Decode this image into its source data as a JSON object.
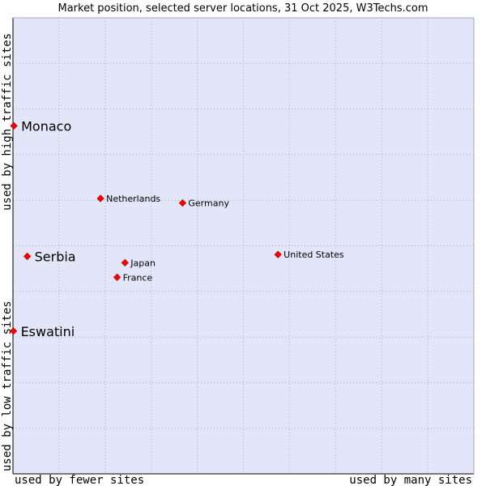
{
  "chart_data": {
    "type": "scatter",
    "title": "Market position, selected server locations, 31 Oct 2025, W3Techs.com",
    "xlabel_left": "used by fewer sites",
    "xlabel_right": "used by many sites",
    "ylabel_bottom": "used by low traffic sites",
    "ylabel_top": "used by high traffic sites",
    "xlim": [
      0,
      100
    ],
    "ylim": [
      0,
      100
    ],
    "grid": true,
    "colors": {
      "background": "#e3e5f8",
      "grid": "#a7a8b8",
      "point": "#ff0000",
      "axis": "#000000"
    },
    "points": [
      {
        "label": "Monaco",
        "x": 0.2,
        "y": 76.3,
        "emphasis": true
      },
      {
        "label": "Serbia",
        "x": 3.1,
        "y": 47.7,
        "emphasis": true
      },
      {
        "label": "Eswatini",
        "x": 0.1,
        "y": 31.3,
        "emphasis": true
      },
      {
        "label": "Netherlands",
        "x": 19.0,
        "y": 60.4,
        "emphasis": false
      },
      {
        "label": "Germany",
        "x": 36.8,
        "y": 59.4,
        "emphasis": false
      },
      {
        "label": "United States",
        "x": 57.5,
        "y": 48.1,
        "emphasis": false
      },
      {
        "label": "Japan",
        "x": 24.3,
        "y": 46.3,
        "emphasis": false
      },
      {
        "label": "France",
        "x": 22.6,
        "y": 43.1,
        "emphasis": false
      }
    ]
  }
}
